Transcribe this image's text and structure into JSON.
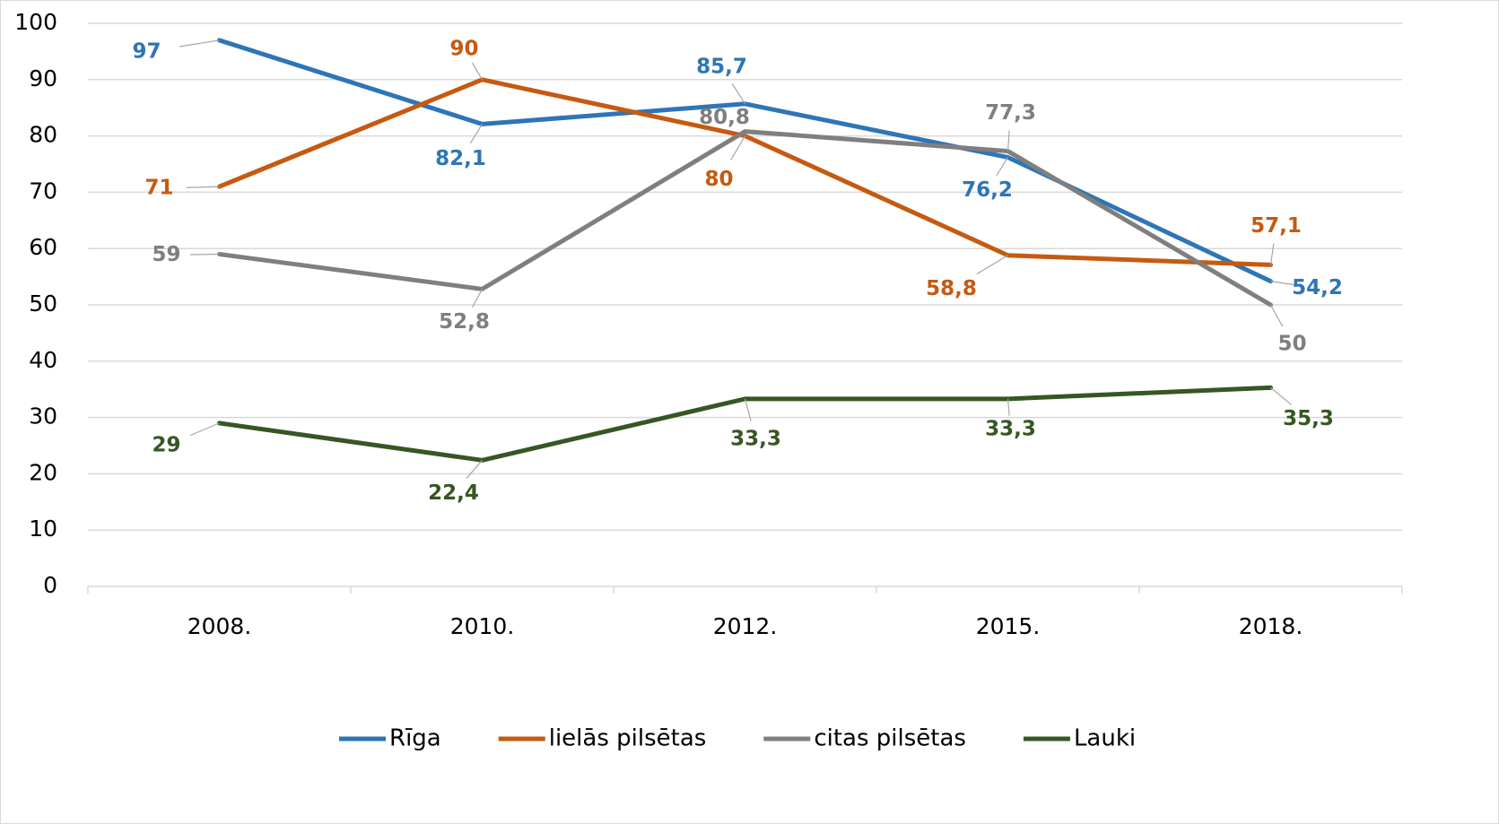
{
  "chart_data": {
    "type": "line",
    "categories": [
      "2008.",
      "2010.",
      "2012.",
      "2015.",
      "2018."
    ],
    "series": [
      {
        "name": "Rīga",
        "color": "#2e75b6",
        "values": [
          97,
          82.1,
          85.7,
          76.2,
          54.2
        ],
        "value_labels": [
          "97",
          "82,1",
          "85,7",
          "76,2",
          "54,2"
        ]
      },
      {
        "name": "lielās pilsētas",
        "color": "#c55a11",
        "values": [
          71,
          90,
          80,
          58.8,
          57.1
        ],
        "value_labels": [
          "71",
          "90",
          "80",
          "58,8",
          "57,1"
        ]
      },
      {
        "name": "citas pilsētas",
        "color": "#7f7f7f",
        "values": [
          59,
          52.8,
          80.8,
          77.3,
          50
        ],
        "value_labels": [
          "59",
          "52,8",
          "80,8",
          "77,3",
          "50"
        ]
      },
      {
        "name": "Lauki",
        "color": "#375623",
        "values": [
          29,
          22.4,
          33.3,
          33.3,
          35.3
        ],
        "value_labels": [
          "29",
          "22,4",
          "33,3",
          "33,3",
          "35,3"
        ]
      }
    ],
    "ylim": [
      0,
      100
    ],
    "yticks": [
      0,
      10,
      20,
      30,
      40,
      50,
      60,
      70,
      80,
      90,
      100
    ],
    "grid": true,
    "legend": "bottom"
  }
}
